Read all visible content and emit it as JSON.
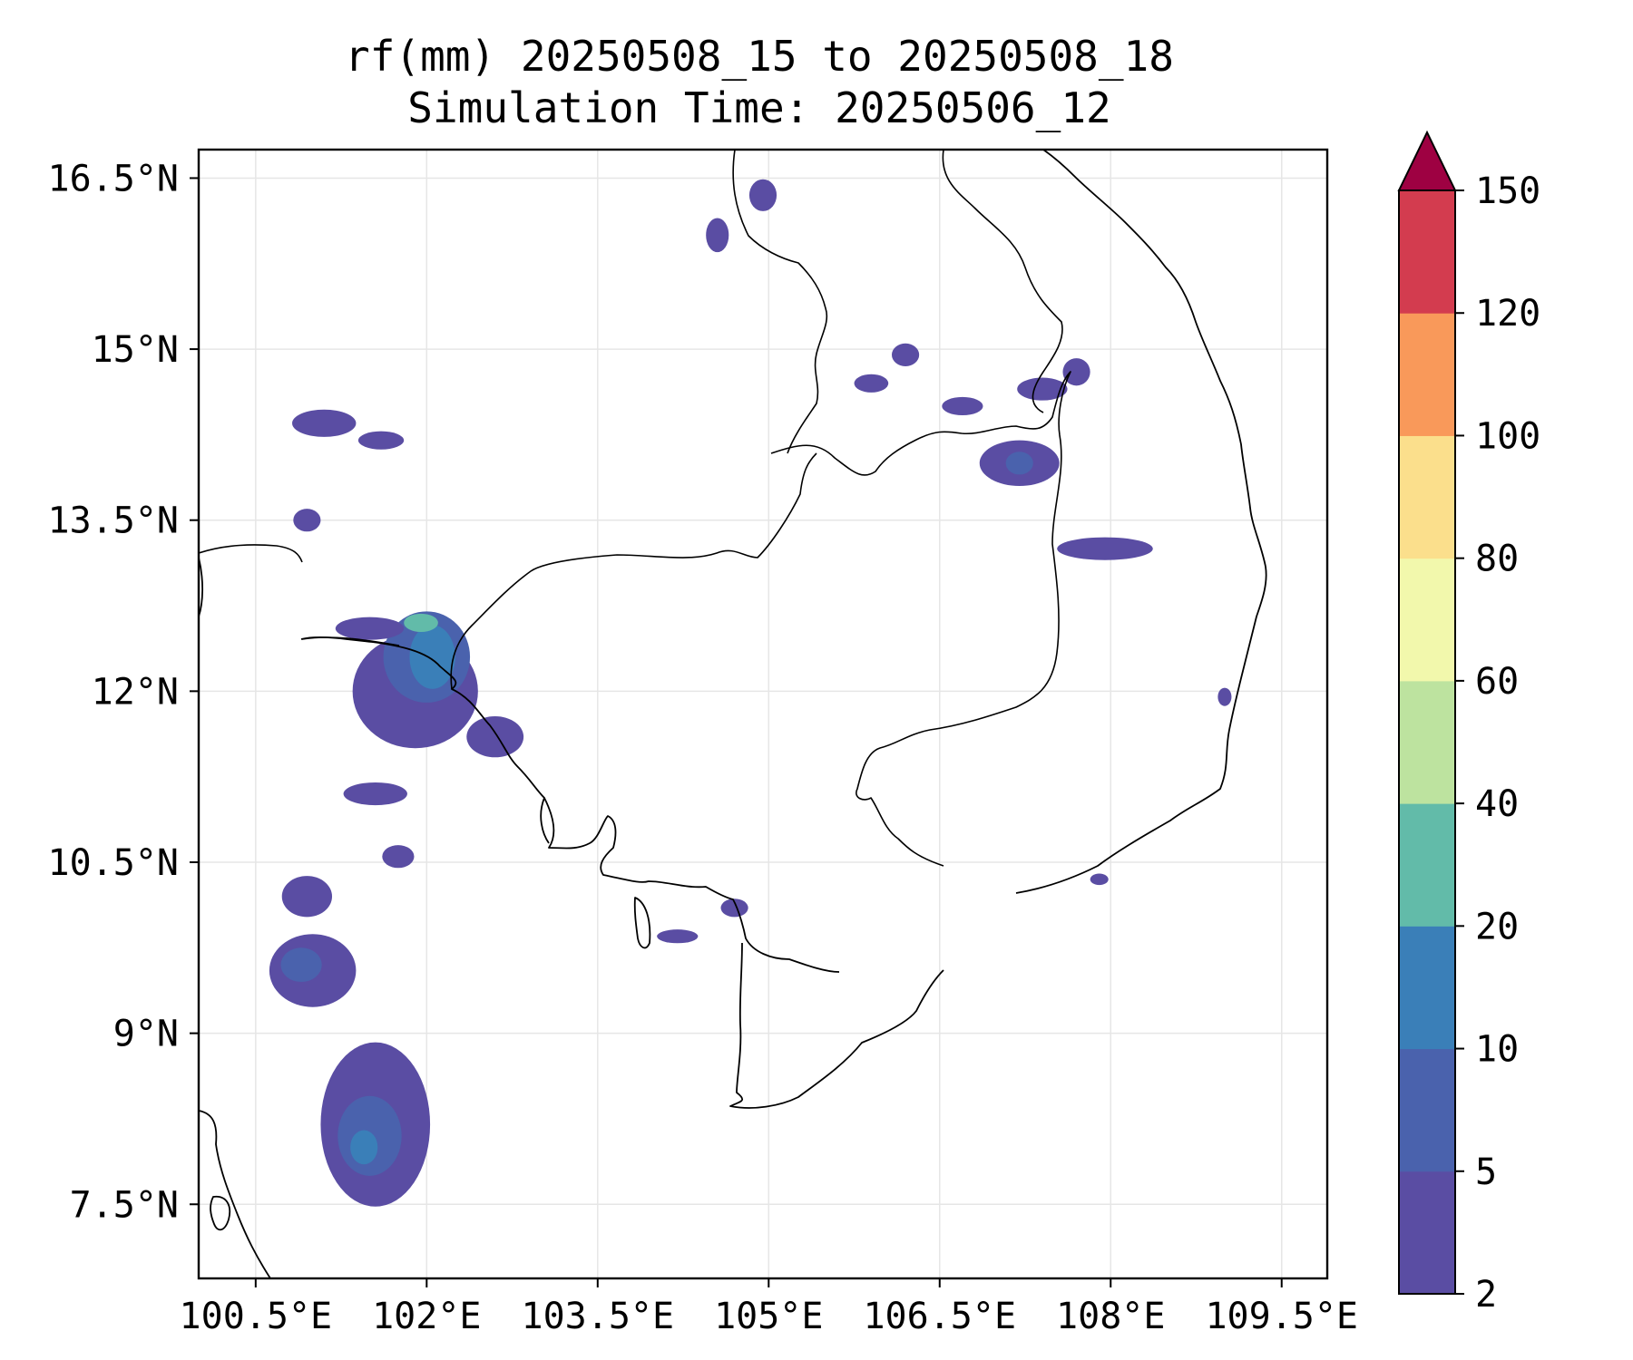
{
  "figure": {
    "title_line1": "rf(mm) 20250508_15 to 20250508_18",
    "title_line2": "Simulation Time: 20250506_12"
  },
  "chart_data": {
    "type": "heatmap",
    "title": "rf(mm) 20250508_15 to 20250508_18",
    "subtitle": "Simulation Time: 20250506_12",
    "xlim": [
      100.0,
      109.9
    ],
    "ylim": [
      6.85,
      16.75
    ],
    "x_ticks": [
      100.5,
      102.0,
      103.5,
      105.0,
      106.5,
      108.0,
      109.5
    ],
    "x_tick_labels": [
      "100.5°E",
      "102°E",
      "103.5°E",
      "105°E",
      "106.5°E",
      "108°E",
      "109.5°E"
    ],
    "y_ticks": [
      7.5,
      9.0,
      10.5,
      12.0,
      13.5,
      15.0,
      16.5
    ],
    "y_tick_labels": [
      "7.5°N",
      "9°N",
      "10.5°N",
      "12°N",
      "13.5°N",
      "15°N",
      "16.5°N"
    ],
    "grid": true,
    "colorbar": {
      "levels": [
        2,
        5,
        10,
        20,
        40,
        60,
        80,
        100,
        120,
        150
      ],
      "level_labels": [
        "2",
        "5",
        "10",
        "20",
        "40",
        "60",
        "80",
        "100",
        "120",
        "150"
      ],
      "colors": [
        "#5a4da3",
        "#4a62ad",
        "#3a7fb8",
        "#62bba9",
        "#bde39f",
        "#f2f8ac",
        "#fbdf8c",
        "#f9995a",
        "#d33c4f"
      ],
      "extend_color": "#9e0142",
      "extend": "max"
    },
    "rain_areas": [
      {
        "lon": 101.55,
        "lat": 8.2,
        "rx": 0.48,
        "ry": 0.72,
        "level": 0
      },
      {
        "lon": 101.5,
        "lat": 8.1,
        "rx": 0.28,
        "ry": 0.35,
        "level": 1
      },
      {
        "lon": 101.45,
        "lat": 8.0,
        "rx": 0.12,
        "ry": 0.15,
        "level": 2
      },
      {
        "lon": 101.0,
        "lat": 9.55,
        "rx": 0.38,
        "ry": 0.32,
        "level": 0
      },
      {
        "lon": 100.9,
        "lat": 9.6,
        "rx": 0.18,
        "ry": 0.15,
        "level": 1
      },
      {
        "lon": 100.95,
        "lat": 10.2,
        "rx": 0.22,
        "ry": 0.18,
        "level": 0
      },
      {
        "lon": 101.75,
        "lat": 10.55,
        "rx": 0.14,
        "ry": 0.1,
        "level": 0
      },
      {
        "lon": 101.55,
        "lat": 11.1,
        "rx": 0.28,
        "ry": 0.1,
        "level": 0
      },
      {
        "lon": 101.9,
        "lat": 12.0,
        "rx": 0.55,
        "ry": 0.5,
        "level": 0
      },
      {
        "lon": 102.0,
        "lat": 12.3,
        "rx": 0.38,
        "ry": 0.4,
        "level": 1
      },
      {
        "lon": 102.05,
        "lat": 12.3,
        "rx": 0.2,
        "ry": 0.28,
        "level": 2
      },
      {
        "lon": 101.95,
        "lat": 12.6,
        "rx": 0.15,
        "ry": 0.08,
        "level": 3
      },
      {
        "lon": 101.5,
        "lat": 12.55,
        "rx": 0.3,
        "ry": 0.1,
        "level": 0
      },
      {
        "lon": 102.6,
        "lat": 11.6,
        "rx": 0.25,
        "ry": 0.18,
        "level": 0
      },
      {
        "lon": 101.1,
        "lat": 14.35,
        "rx": 0.28,
        "ry": 0.12,
        "level": 0
      },
      {
        "lon": 101.6,
        "lat": 14.2,
        "rx": 0.2,
        "ry": 0.08,
        "level": 0
      },
      {
        "lon": 100.95,
        "lat": 13.5,
        "rx": 0.12,
        "ry": 0.1,
        "level": 0
      },
      {
        "lon": 104.55,
        "lat": 16.0,
        "rx": 0.1,
        "ry": 0.15,
        "level": 0
      },
      {
        "lon": 104.95,
        "lat": 16.35,
        "rx": 0.12,
        "ry": 0.14,
        "level": 0
      },
      {
        "lon": 106.2,
        "lat": 14.95,
        "rx": 0.12,
        "ry": 0.1,
        "level": 0
      },
      {
        "lon": 105.9,
        "lat": 14.7,
        "rx": 0.15,
        "ry": 0.08,
        "level": 0
      },
      {
        "lon": 106.7,
        "lat": 14.5,
        "rx": 0.18,
        "ry": 0.08,
        "level": 0
      },
      {
        "lon": 107.4,
        "lat": 14.65,
        "rx": 0.22,
        "ry": 0.1,
        "level": 0
      },
      {
        "lon": 107.7,
        "lat": 14.8,
        "rx": 0.12,
        "ry": 0.12,
        "level": 0
      },
      {
        "lon": 107.2,
        "lat": 14.0,
        "rx": 0.35,
        "ry": 0.2,
        "level": 0
      },
      {
        "lon": 107.2,
        "lat": 14.0,
        "rx": 0.12,
        "ry": 0.1,
        "level": 1
      },
      {
        "lon": 107.95,
        "lat": 13.25,
        "rx": 0.42,
        "ry": 0.1,
        "level": 0
      },
      {
        "lon": 104.7,
        "lat": 10.1,
        "rx": 0.12,
        "ry": 0.08,
        "level": 0
      },
      {
        "lon": 104.2,
        "lat": 9.85,
        "rx": 0.18,
        "ry": 0.06,
        "level": 0
      },
      {
        "lon": 109.0,
        "lat": 11.95,
        "rx": 0.06,
        "ry": 0.08,
        "level": 0
      },
      {
        "lon": 107.9,
        "lat": 10.35,
        "rx": 0.08,
        "ry": 0.05,
        "level": 0
      }
    ]
  }
}
